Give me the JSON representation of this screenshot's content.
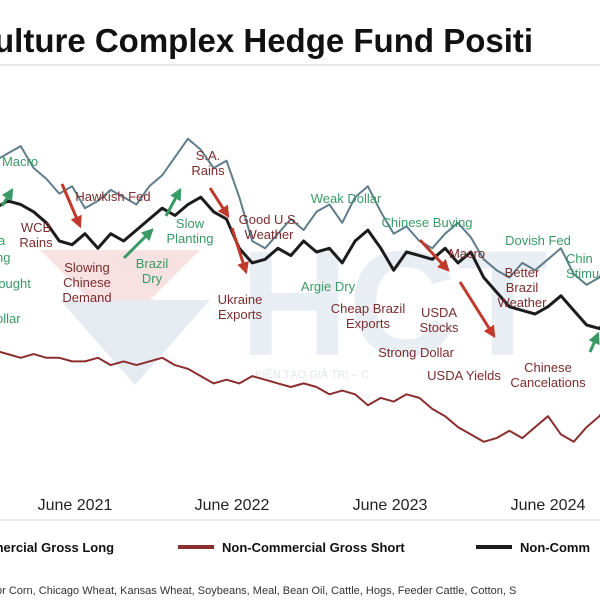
{
  "chart_data": {
    "type": "line",
    "title": "ulture Complex Hedge Fund Positi",
    "x_ticks": [
      "June 2021",
      "June 2022",
      "June 2023",
      "June 2024"
    ],
    "x_range": [
      "2020-11",
      "2024-12"
    ],
    "legend": [
      {
        "label": "mercial Gross Long",
        "color": "#607d8b"
      },
      {
        "label": "Non-Commercial Gross Short",
        "color": "#8b2e2e"
      },
      {
        "label": "Non-Comm",
        "color": "#1c1c1c"
      }
    ],
    "series": [
      {
        "name": "mercial Gross Long",
        "color": "#607d8b",
        "x": [
          "2020-11",
          "2020-12",
          "2021-01",
          "2021-02",
          "2021-03",
          "2021-04",
          "2021-05",
          "2021-06",
          "2021-07",
          "2021-08",
          "2021-09",
          "2021-10",
          "2021-11",
          "2021-12",
          "2022-01",
          "2022-02",
          "2022-03",
          "2022-04",
          "2022-05",
          "2022-06",
          "2022-07",
          "2022-08",
          "2022-09",
          "2022-10",
          "2022-11",
          "2022-12",
          "2023-01",
          "2023-02",
          "2023-03",
          "2023-04",
          "2023-05",
          "2023-06",
          "2023-07",
          "2023-08",
          "2023-09",
          "2023-10",
          "2023-11",
          "2023-12",
          "2024-01",
          "2024-02",
          "2024-03",
          "2024-04",
          "2024-05",
          "2024-06",
          "2024-07",
          "2024-08",
          "2024-09",
          "2024-10",
          "2024-11",
          "2024-12"
        ],
        "y": [
          82,
          84,
          86,
          80,
          77,
          73,
          75,
          69,
          71,
          74,
          72,
          70,
          75,
          78,
          83,
          88,
          85,
          80,
          82,
          72,
          60,
          58,
          62,
          66,
          63,
          68,
          70,
          65,
          72,
          75,
          68,
          62,
          64,
          60,
          58,
          62,
          65,
          61,
          55,
          52,
          50,
          54,
          52,
          55,
          58,
          51,
          48,
          50,
          56,
          66
        ]
      },
      {
        "name": "Non-Commercial Gross Short",
        "color": "#8b2e2e",
        "x": [
          "2020-11",
          "2020-12",
          "2021-01",
          "2021-02",
          "2021-03",
          "2021-04",
          "2021-05",
          "2021-06",
          "2021-07",
          "2021-08",
          "2021-09",
          "2021-10",
          "2021-11",
          "2021-12",
          "2022-01",
          "2022-02",
          "2022-03",
          "2022-04",
          "2022-05",
          "2022-06",
          "2022-07",
          "2022-08",
          "2022-09",
          "2022-10",
          "2022-11",
          "2022-12",
          "2023-01",
          "2023-02",
          "2023-03",
          "2023-04",
          "2023-05",
          "2023-06",
          "2023-07",
          "2023-08",
          "2023-09",
          "2023-10",
          "2023-11",
          "2023-12",
          "2024-01",
          "2024-02",
          "2024-03",
          "2024-04",
          "2024-05",
          "2024-06",
          "2024-07",
          "2024-08",
          "2024-09",
          "2024-10",
          "2024-11",
          "2024-12"
        ],
        "y": [
          30,
          29,
          28,
          29,
          28,
          28,
          27,
          27,
          28,
          26,
          27,
          26,
          27,
          28,
          26,
          25,
          23,
          21,
          22,
          21,
          23,
          22,
          21,
          20,
          21,
          20,
          18,
          19,
          18,
          15,
          17,
          16,
          18,
          17,
          14,
          12,
          9,
          7,
          5,
          6,
          8,
          6,
          9,
          12,
          7,
          5,
          9,
          12,
          17,
          24
        ]
      },
      {
        "name": "Non-Comm",
        "color": "#1c1c1c",
        "x": [
          "2020-11",
          "2020-12",
          "2021-01",
          "2021-02",
          "2021-03",
          "2021-04",
          "2021-05",
          "2021-06",
          "2021-07",
          "2021-08",
          "2021-09",
          "2021-10",
          "2021-11",
          "2021-12",
          "2022-01",
          "2022-02",
          "2022-03",
          "2022-04",
          "2022-05",
          "2022-06",
          "2022-07",
          "2022-08",
          "2022-09",
          "2022-10",
          "2022-11",
          "2022-12",
          "2023-01",
          "2023-02",
          "2023-03",
          "2023-04",
          "2023-05",
          "2023-06",
          "2023-07",
          "2023-08",
          "2023-09",
          "2023-10",
          "2023-11",
          "2023-12",
          "2024-01",
          "2024-02",
          "2024-03",
          "2024-04",
          "2024-05",
          "2024-06",
          "2024-07",
          "2024-08",
          "2024-09",
          "2024-10",
          "2024-11",
          "2024-12"
        ],
        "y": [
          69,
          71,
          70,
          68,
          65,
          60,
          59,
          62,
          58,
          62,
          60,
          63,
          66,
          69,
          67,
          70,
          72,
          68,
          66,
          58,
          54,
          55,
          58,
          56,
          60,
          57,
          58,
          54,
          60,
          63,
          58,
          52,
          57,
          56,
          55,
          58,
          54,
          57,
          50,
          46,
          42,
          41,
          40,
          42,
          45,
          41,
          37,
          36,
          40,
          48
        ]
      }
    ],
    "annotations": [
      {
        "text": "Macro",
        "color": "#3a9a66"
      },
      {
        "text": "a",
        "color": "#3a9a66"
      },
      {
        "text": "ng",
        "color": "#3a9a66"
      },
      {
        "text": "rought",
        "color": "#3a9a66"
      },
      {
        "text": "ollar",
        "color": "#3a9a66"
      },
      {
        "text": "WCB\nRains",
        "color": "#7a2d2d"
      },
      {
        "text": "Hawkish Fed",
        "color": "#7a2d2d"
      },
      {
        "text": "Slowing\nChinese\nDemand",
        "color": "#7a2d2d"
      },
      {
        "text": "Brazil\nDry",
        "color": "#3a9a66"
      },
      {
        "text": "Slow\nPlanting",
        "color": "#3a9a66"
      },
      {
        "text": "S.A.\nRains",
        "color": "#7a2d2d"
      },
      {
        "text": "Good U.S.\nWeather",
        "color": "#7a2d2d"
      },
      {
        "text": "Ukraine\nExports",
        "color": "#7a2d2d"
      },
      {
        "text": "Weak Dollar",
        "color": "#3a9a66"
      },
      {
        "text": "Argie Dry",
        "color": "#3a9a66"
      },
      {
        "text": "Chinese Buying",
        "color": "#3a9a66"
      },
      {
        "text": "Cheap Brazil\nExports",
        "color": "#7a2d2d"
      },
      {
        "text": "Macro",
        "color": "#7a2d2d"
      },
      {
        "text": "USDA\nStocks",
        "color": "#7a2d2d"
      },
      {
        "text": "Strong Dollar",
        "color": "#7a2d2d"
      },
      {
        "text": "USDA Yields",
        "color": "#7a2d2d"
      },
      {
        "text": "Better\nBrazil\nWeather",
        "color": "#7a2d2d"
      },
      {
        "text": "Dovish Fed",
        "color": "#3a9a66"
      },
      {
        "text": "Chinese\nCancelations",
        "color": "#7a2d2d"
      },
      {
        "text": "Chin\nStimu",
        "color": "#3a9a66"
      }
    ],
    "footnote": "or Corn, Chicago Wheat, Kansas Wheat, Soybeans, Meal, Bean Oil, Cattle, Hogs, Feeder Cattle, Cotton, S",
    "watermark": {
      "text": "HCT",
      "subtext": "KIẾN TẠO GIÁ TRỊ – C"
    },
    "grid": false
  }
}
